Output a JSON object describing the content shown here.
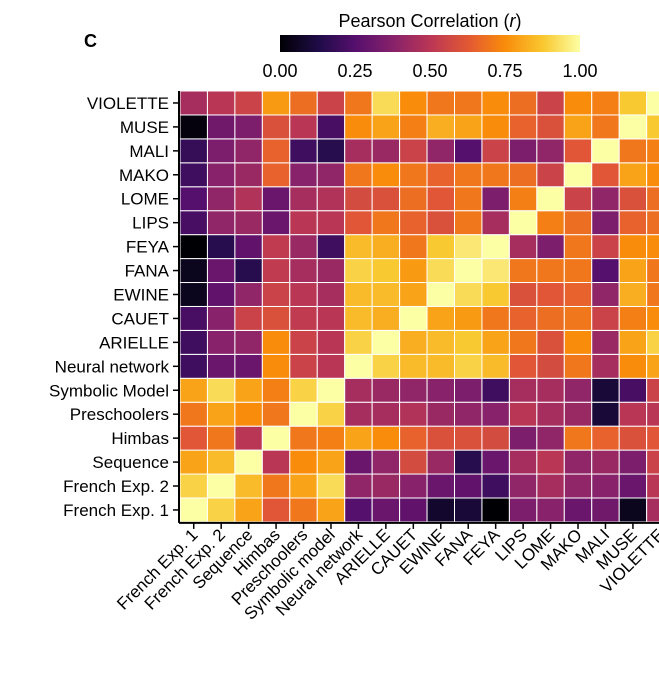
{
  "panel_label": "C",
  "chart_data": {
    "type": "heatmap",
    "colorbar": {
      "title_prefix": "Pearson Correlation (",
      "title_var": "r",
      "title_suffix": ")",
      "range": [
        0,
        1
      ],
      "ticks": [
        "0.00",
        "0.25",
        "0.50",
        "0.75",
        "1.00"
      ],
      "colormap": "inferno"
    },
    "labels": [
      "French Exp. 1",
      "French Exp. 2",
      "Sequence",
      "Himbas",
      "Preschoolers",
      "Symbolic model",
      "Neural network",
      "ARIELLE",
      "CAUET",
      "EWINE",
      "FANA",
      "FEYA",
      "LIPS",
      "LOME",
      "MAKO",
      "MALI",
      "MUSE",
      "VIOLETTE"
    ],
    "y_labels": [
      "VIOLETTE",
      "MUSE",
      "MALI",
      "MAKO",
      "LOME",
      "LIPS",
      "FEYA",
      "FANA",
      "EWINE",
      "CAUET",
      "ARIELLE",
      "Neural network",
      "Symbolic Model",
      "Preschoolers",
      "Himbas",
      "Sequence",
      "French Exp. 2",
      "French Exp. 1"
    ],
    "matrix": [
      [
        1.0,
        0.9,
        0.8,
        0.62,
        0.7,
        0.8,
        0.25,
        0.3,
        0.28,
        0.08,
        0.1,
        0.0,
        0.35,
        0.38,
        0.3,
        0.32,
        0.05,
        0.45
      ],
      [
        0.9,
        1.0,
        0.85,
        0.7,
        0.8,
        0.92,
        0.4,
        0.42,
        0.38,
        0.3,
        0.28,
        0.2,
        0.4,
        0.45,
        0.4,
        0.38,
        0.3,
        0.5
      ],
      [
        0.8,
        0.85,
        1.0,
        0.5,
        0.75,
        0.8,
        0.3,
        0.4,
        0.58,
        0.42,
        0.15,
        0.3,
        0.45,
        0.5,
        0.4,
        0.42,
        0.35,
        0.55
      ],
      [
        0.62,
        0.7,
        0.5,
        1.0,
        0.7,
        0.72,
        0.8,
        0.75,
        0.65,
        0.6,
        0.6,
        0.58,
        0.35,
        0.4,
        0.7,
        0.65,
        0.6,
        0.62
      ],
      [
        0.7,
        0.8,
        0.75,
        0.7,
        1.0,
        0.9,
        0.45,
        0.45,
        0.48,
        0.42,
        0.4,
        0.38,
        0.5,
        0.45,
        0.42,
        0.1,
        0.5,
        0.5
      ],
      [
        0.8,
        0.92,
        0.8,
        0.72,
        0.9,
        1.0,
        0.45,
        0.42,
        0.4,
        0.38,
        0.35,
        0.2,
        0.45,
        0.45,
        0.4,
        0.1,
        0.22,
        0.55
      ],
      [
        0.2,
        0.3,
        0.3,
        0.75,
        0.55,
        0.5,
        1.0,
        0.9,
        0.85,
        0.85,
        0.9,
        0.85,
        0.62,
        0.58,
        0.7,
        0.45,
        0.75,
        0.8
      ],
      [
        0.2,
        0.38,
        0.4,
        0.75,
        0.55,
        0.5,
        0.9,
        1.0,
        0.82,
        0.85,
        0.88,
        0.8,
        0.7,
        0.6,
        0.75,
        0.42,
        0.8,
        0.9
      ],
      [
        0.22,
        0.38,
        0.55,
        0.6,
        0.52,
        0.5,
        0.85,
        0.82,
        1.0,
        0.8,
        0.78,
        0.7,
        0.65,
        0.68,
        0.7,
        0.55,
        0.72,
        0.75
      ],
      [
        0.05,
        0.28,
        0.4,
        0.55,
        0.5,
        0.45,
        0.85,
        0.85,
        0.8,
        1.0,
        0.92,
        0.88,
        0.6,
        0.62,
        0.65,
        0.4,
        0.82,
        0.7
      ],
      [
        0.05,
        0.3,
        0.15,
        0.52,
        0.45,
        0.42,
        0.9,
        0.88,
        0.78,
        0.92,
        1.0,
        0.95,
        0.7,
        0.7,
        0.7,
        0.25,
        0.8,
        0.7
      ],
      [
        0.0,
        0.15,
        0.28,
        0.52,
        0.42,
        0.2,
        0.85,
        0.82,
        0.7,
        0.88,
        0.95,
        1.0,
        0.45,
        0.35,
        0.7,
        0.55,
        0.75,
        0.75
      ],
      [
        0.22,
        0.4,
        0.42,
        0.3,
        0.5,
        0.5,
        0.62,
        0.7,
        0.65,
        0.6,
        0.7,
        0.45,
        1.0,
        0.72,
        0.68,
        0.35,
        0.65,
        0.68
      ],
      [
        0.25,
        0.4,
        0.48,
        0.3,
        0.45,
        0.48,
        0.58,
        0.6,
        0.68,
        0.62,
        0.7,
        0.35,
        0.72,
        1.0,
        0.55,
        0.4,
        0.6,
        0.68
      ],
      [
        0.2,
        0.38,
        0.42,
        0.65,
        0.38,
        0.4,
        0.7,
        0.75,
        0.7,
        0.65,
        0.7,
        0.7,
        0.68,
        0.55,
        1.0,
        0.62,
        0.8,
        0.75
      ],
      [
        0.18,
        0.35,
        0.4,
        0.65,
        0.2,
        0.15,
        0.45,
        0.42,
        0.55,
        0.4,
        0.25,
        0.55,
        0.35,
        0.4,
        0.62,
        1.0,
        0.7,
        0.72
      ],
      [
        0.02,
        0.32,
        0.35,
        0.6,
        0.5,
        0.22,
        0.75,
        0.8,
        0.72,
        0.82,
        0.8,
        0.75,
        0.65,
        0.6,
        0.8,
        0.7,
        1.0,
        0.88
      ],
      [
        0.45,
        0.5,
        0.55,
        0.78,
        0.68,
        0.55,
        0.7,
        0.92,
        0.75,
        0.7,
        0.7,
        0.75,
        0.68,
        0.55,
        0.75,
        0.72,
        0.88,
        1.0
      ]
    ]
  }
}
